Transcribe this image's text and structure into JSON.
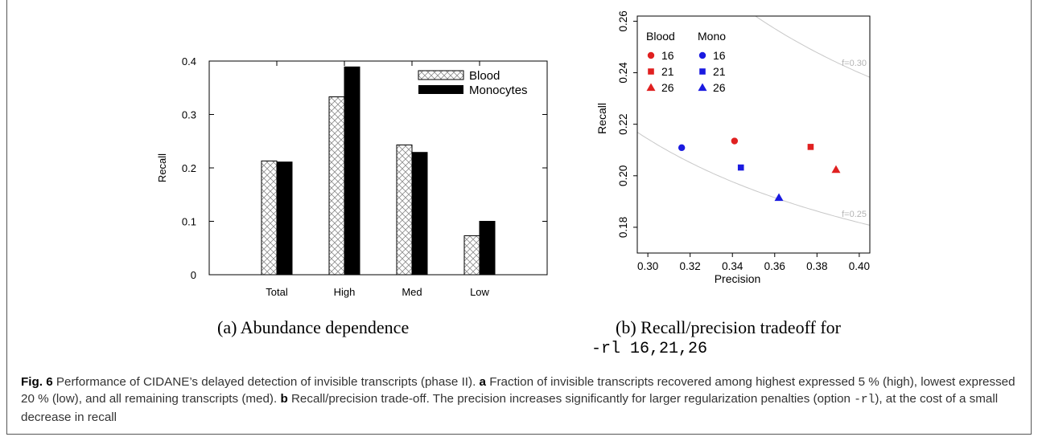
{
  "figure": {
    "subcaption_a": "(a)  Abundance dependence",
    "subcaption_b_line1": "(b)  Recall/precision tradeoff for",
    "subcaption_b_line2": "-rl 16,21,26",
    "caption": {
      "label": "Fig. 6",
      "text1": " Performance of CIDANE’s delayed detection of invisible transcripts (phase II). ",
      "a": "a",
      "text2": " Fraction of invisible transcripts recovered among highest expressed 5 % (high), lowest expressed 20 % (low), and all remaining transcripts (med). ",
      "b": "b",
      "text3": " Recall/precision trade-off. The precision increases significantly for larger regularization penalties (option ",
      "option": "-rl",
      "text4": "), at the cost of a small decrease in recall"
    }
  },
  "chart_data": [
    {
      "type": "bar",
      "categories": [
        "Total",
        "High",
        "Med",
        "Low"
      ],
      "series": [
        {
          "name": "Blood",
          "values": [
            0.213,
            0.333,
            0.243,
            0.073
          ],
          "pattern": "crosshatch"
        },
        {
          "name": "Monocytes",
          "values": [
            0.211,
            0.389,
            0.229,
            0.1
          ],
          "color": "#000000"
        }
      ],
      "ylabel": "Recall",
      "ylim": [
        0,
        0.4
      ],
      "yticks": [
        "0",
        "0.1",
        "0.2",
        "0.3",
        "0.4"
      ],
      "legend": "top-right"
    },
    {
      "type": "scatter",
      "xlabel": "Precision",
      "ylabel": "Recall",
      "xlim": [
        0.295,
        0.405
      ],
      "ylim": [
        0.17,
        0.262
      ],
      "xticks": [
        "0.30",
        "0.32",
        "0.34",
        "0.36",
        "0.38",
        "0.40"
      ],
      "yticks": [
        "0.18",
        "0.20",
        "0.22",
        "0.24",
        "0.26"
      ],
      "legend_headers": [
        "Blood",
        "Mono"
      ],
      "legend_labels": [
        "16",
        "21",
        "26"
      ],
      "series": [
        {
          "name": "Blood",
          "color": "#e02020",
          "points": [
            {
              "label": "16",
              "marker": "circle",
              "x": 0.341,
              "y": 0.2135
            },
            {
              "label": "21",
              "marker": "square",
              "x": 0.377,
              "y": 0.2112
            },
            {
              "label": "26",
              "marker": "triangle",
              "x": 0.389,
              "y": 0.2024
            }
          ]
        },
        {
          "name": "Mono",
          "color": "#1a1ae0",
          "points": [
            {
              "label": "16",
              "marker": "circle",
              "x": 0.316,
              "y": 0.2109
            },
            {
              "label": "21",
              "marker": "square",
              "x": 0.344,
              "y": 0.2032
            },
            {
              "label": "26",
              "marker": "triangle",
              "x": 0.362,
              "y": 0.1915
            }
          ]
        }
      ],
      "annotations": [
        {
          "text": "f=0.30",
          "f": 0.3
        },
        {
          "text": "f=0.25",
          "f": 0.25
        }
      ],
      "grid": false
    }
  ]
}
